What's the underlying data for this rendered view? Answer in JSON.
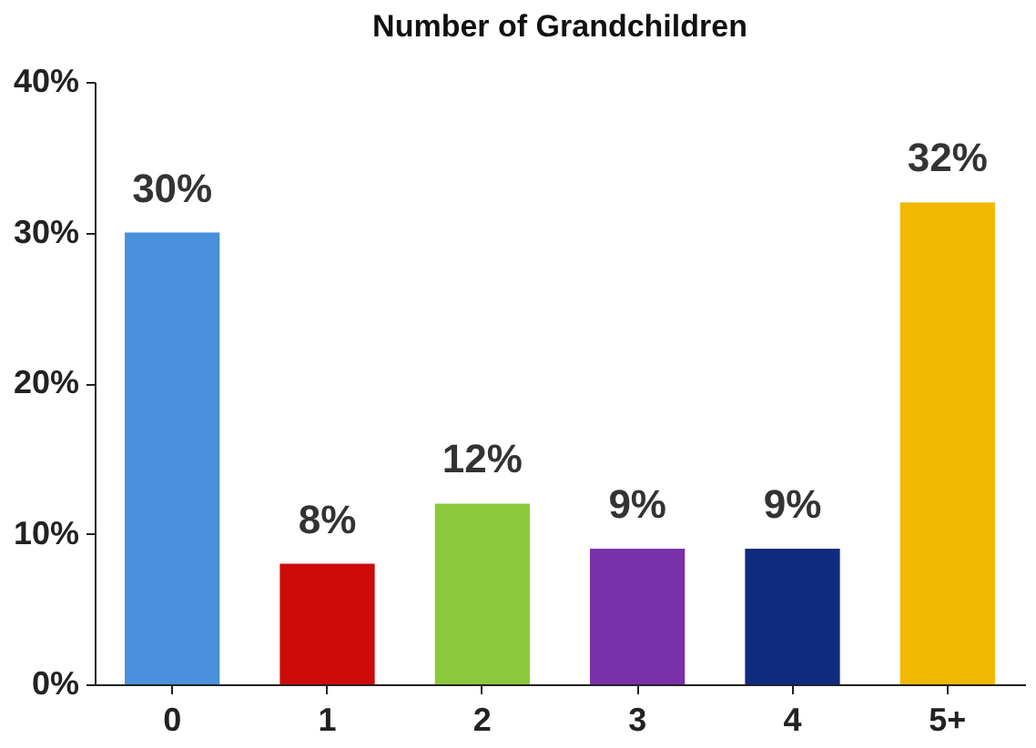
{
  "chart_data": {
    "type": "bar",
    "title": "Number of Grandchildren",
    "categories": [
      "0",
      "1",
      "2",
      "3",
      "4",
      "5+"
    ],
    "values": [
      30,
      8,
      12,
      9,
      9,
      32
    ],
    "colors": [
      "#4a8fdc",
      "#cc0a0a",
      "#8cc83c",
      "#7a30a8",
      "#102a80",
      "#f2b800"
    ],
    "value_labels": [
      "30%",
      "8%",
      "12%",
      "9%",
      "9%",
      "32%"
    ],
    "ylim": [
      0,
      40
    ],
    "yticks": [
      {
        "value": 0,
        "label": "0%"
      },
      {
        "value": 10,
        "label": "10%"
      },
      {
        "value": 20,
        "label": "20%"
      },
      {
        "value": 30,
        "label": "30%"
      },
      {
        "value": 40,
        "label": "40%"
      }
    ],
    "grid": false
  }
}
